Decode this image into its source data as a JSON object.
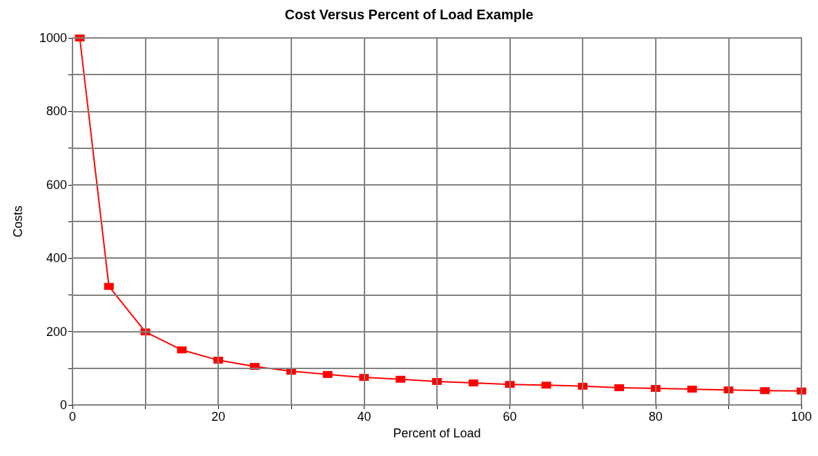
{
  "chart_data": {
    "type": "line",
    "title": "Cost Versus Percent of Load Example",
    "xlabel": "Percent of Load",
    "ylabel": "Costs",
    "x": [
      1,
      5,
      10,
      15,
      20,
      25,
      30,
      35,
      40,
      45,
      50,
      55,
      60,
      65,
      70,
      75,
      80,
      85,
      90,
      95,
      100
    ],
    "series": [
      {
        "color": "#ff0000",
        "values": [
          1000,
          323,
          199,
          150,
          122,
          105,
          92,
          83,
          75,
          70,
          64,
          60,
          56,
          54,
          51,
          47,
          45,
          43,
          41,
          39,
          38
        ]
      }
    ],
    "xlim": [
      0,
      100
    ],
    "ylim": [
      0,
      1000
    ],
    "xticks": [
      0,
      {
        "value": 10,
        "label": null
      },
      20,
      {
        "value": 30,
        "label": null
      },
      40,
      {
        "value": 50,
        "label": null
      },
      60,
      {
        "value": 70,
        "label": null
      },
      80,
      {
        "value": 90,
        "label": null
      },
      100
    ],
    "yticks": [
      0,
      {
        "value": 100,
        "label": null
      },
      200,
      {
        "value": 300,
        "label": null
      },
      400,
      {
        "value": 500,
        "label": null
      },
      600,
      {
        "value": 700,
        "label": null
      },
      800,
      {
        "value": 900,
        "label": null
      },
      1000
    ],
    "grid": true,
    "marker": "square",
    "line_style": "solid"
  }
}
